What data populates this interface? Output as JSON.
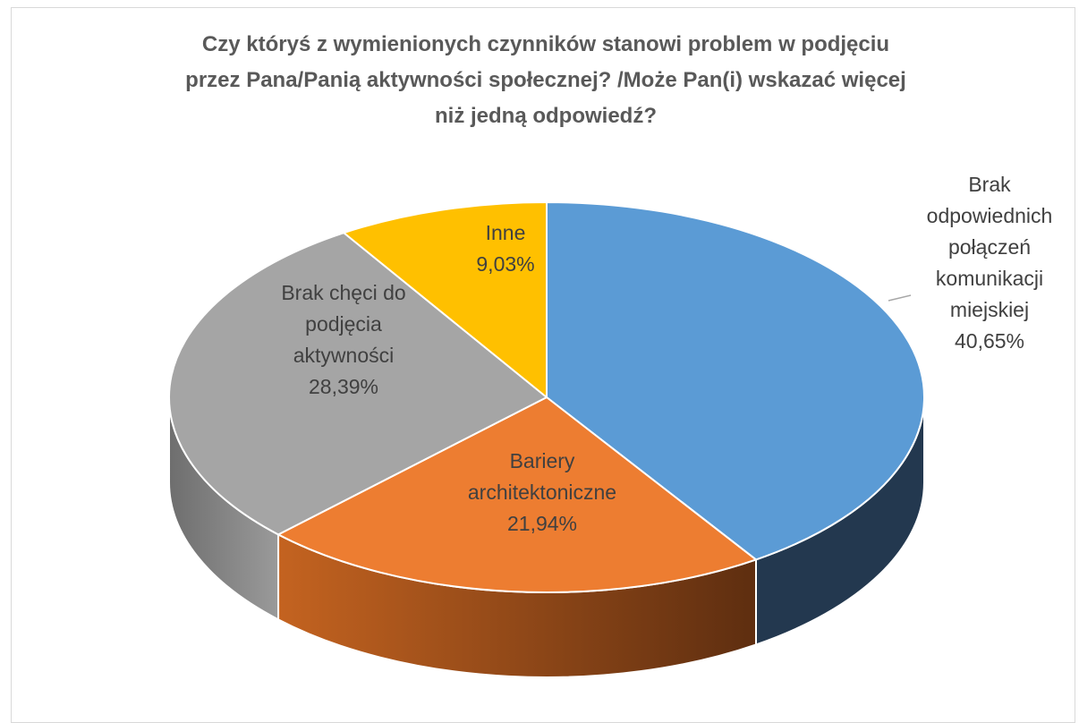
{
  "chart_data": {
    "type": "pie",
    "title_lines": [
      "Czy któryś z wymienionych czynników stanowi problem w podjęciu",
      "przez Pana/Panią aktywności społecznej? /Może Pan(i) wskazać więcej",
      "niż jedną odpowiedź?"
    ],
    "slices": [
      {
        "name": "Brak odpowiednich połączeń komunikacji miejskiej",
        "value": 40.65,
        "label_lines": [
          "Brak",
          "odpowiednich",
          "połączeń",
          "komunikacji",
          "miejskiej"
        ],
        "value_label": "40,65%",
        "color": "#5b9bd5",
        "side_color": "#23384f"
      },
      {
        "name": "Bariery architektoniczne",
        "value": 21.94,
        "label_lines": [
          "Bariery",
          "architektoniczne"
        ],
        "value_label": "21,94%",
        "color": "#ed7d31",
        "side_color": "#b45c20"
      },
      {
        "name": "Brak chęci do podjęcia aktywności",
        "value": 28.39,
        "label_lines": [
          "Brak chęci do",
          "podjęcia",
          "aktywności"
        ],
        "value_label": "28,39%",
        "color": "#a5a5a5",
        "side_color": "#7f7f7f"
      },
      {
        "name": "Inne",
        "value": 9.03,
        "label_lines": [
          "Inne"
        ],
        "value_label": "9,03%",
        "color": "#ffc000",
        "side_color": "#b38600"
      }
    ],
    "legend": "none",
    "style": "3d"
  }
}
